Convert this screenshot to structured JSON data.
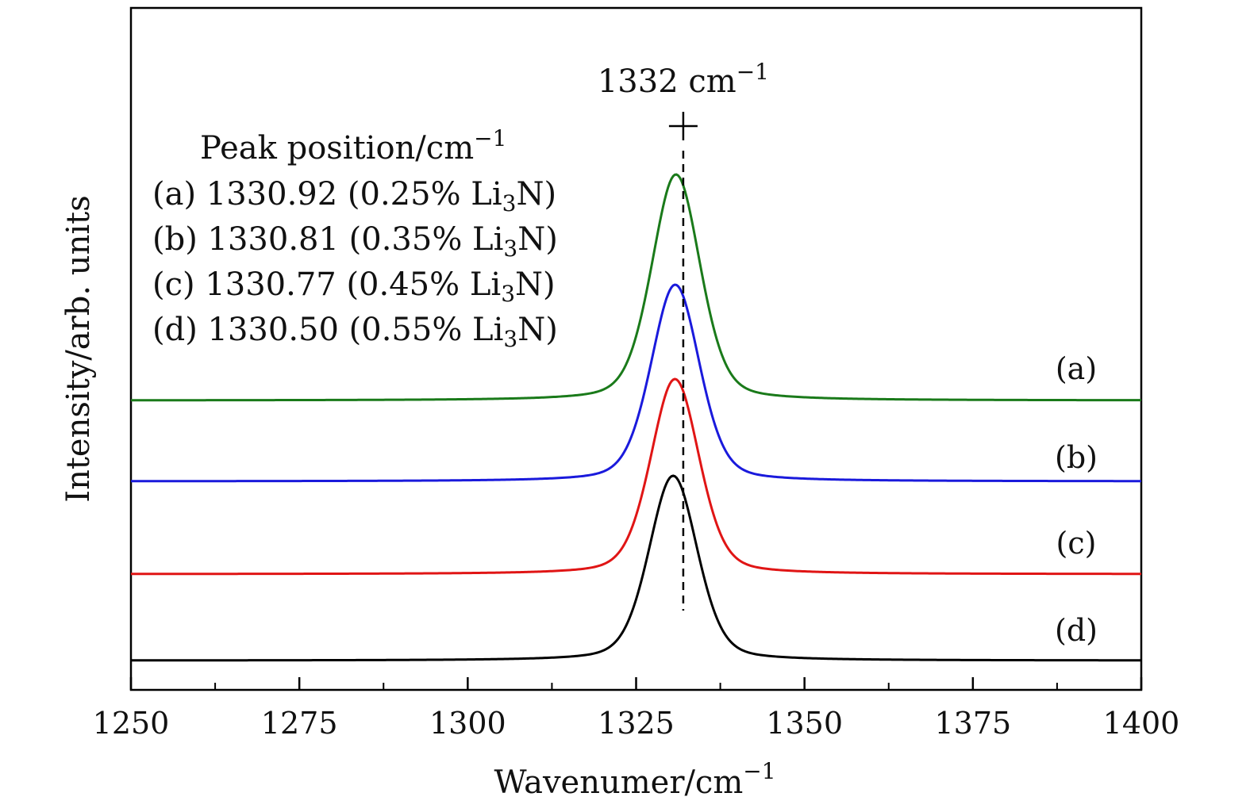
{
  "chart_data": {
    "type": "line",
    "xlabel": "Wavenumer/cm",
    "xlabel_sup": "−1",
    "ylabel": "Intensity/arb. units",
    "xlim": [
      1250,
      1400
    ],
    "x_ticks": [
      1250,
      1275,
      1300,
      1325,
      1350,
      1375,
      1400
    ],
    "x_minor_ticks": [
      1262.5,
      1287.5,
      1312.5,
      1337.5,
      1362.5,
      1387.5
    ],
    "y_ticks_shown": false,
    "grid": false,
    "annotation": {
      "text": "1332 cm",
      "sup": "−1",
      "x": 1332,
      "marker": "+",
      "line_style": "dashed"
    },
    "legend": {
      "placement": "top-left",
      "title": "Peak position/cm",
      "title_sup": "−1",
      "entries": [
        {
          "tag": "(a)",
          "value": "1330.92",
          "pre": "(0.25% Li",
          "sub": "3",
          "post": "N)"
        },
        {
          "tag": "(b)",
          "value": "1330.81",
          "pre": "(0.35% Li",
          "sub": "3",
          "post": "N)"
        },
        {
          "tag": "(c)",
          "value": "1330.77",
          "pre": "(0.45% Li",
          "sub": "3",
          "post": "N)"
        },
        {
          "tag": "(d)",
          "value": "1330.50",
          "pre": "(0.55% Li",
          "sub": "3",
          "post": "N)"
        }
      ]
    },
    "series": [
      {
        "label": "(a)",
        "color": "#1a7a1a",
        "peak_x": 1330.92,
        "baseline": 0.0,
        "amplitude": 1.0
      },
      {
        "label": "(b)",
        "color": "#1a1adc",
        "peak_x": 1330.81,
        "baseline": 0.0,
        "amplitude": 0.87
      },
      {
        "label": "(c)",
        "color": "#e01515",
        "peak_x": 1330.77,
        "baseline": 0.0,
        "amplitude": 0.85
      },
      {
        "label": "(d)",
        "color": "#000000",
        "peak_x": 1330.5,
        "baseline": 0.0,
        "amplitude": 0.82
      }
    ]
  }
}
